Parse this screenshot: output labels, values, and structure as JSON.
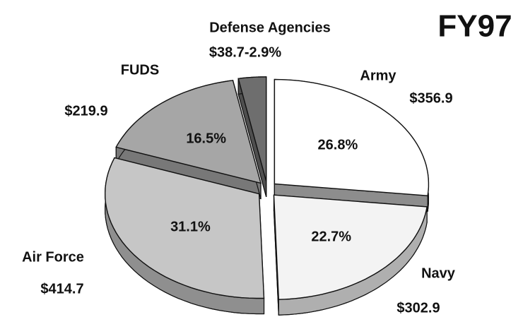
{
  "chart_data": {
    "type": "pie",
    "title": "FY97",
    "categories": [
      "Army",
      "Navy",
      "Air Force",
      "FUDS",
      "Defense Agencies"
    ],
    "values": [
      26.8,
      22.7,
      31.1,
      16.5,
      2.9
    ],
    "value_labels": [
      "26.8%",
      "22.7%",
      "31.1%",
      "16.5%",
      null
    ],
    "amounts": [
      356.9,
      302.9,
      414.7,
      219.9,
      38.7
    ],
    "amount_labels": [
      "$356.9",
      "$302.9",
      "$414.7",
      "$219.9",
      "$38.7-2.9%"
    ],
    "colors": [
      "#ffffff",
      "#f3f3f3",
      "#c6c6c6",
      "#a6a6a6",
      "#6e6e6e"
    ]
  }
}
